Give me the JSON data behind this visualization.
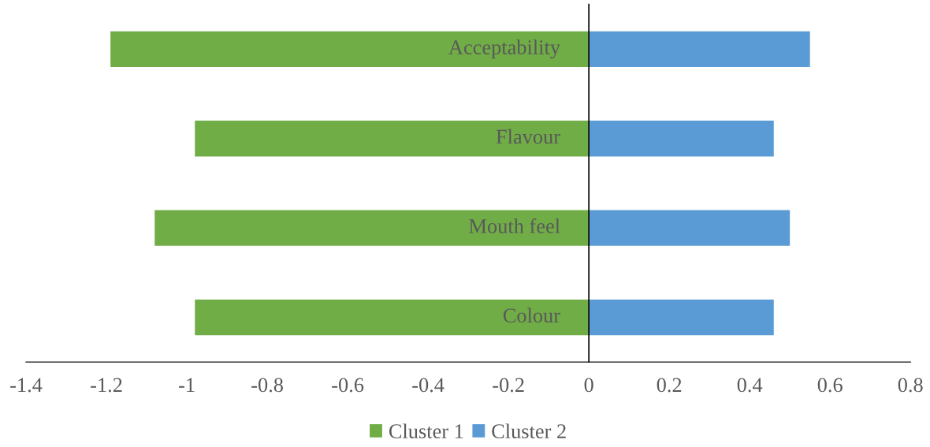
{
  "chart_data": {
    "type": "bar",
    "orientation": "horizontal",
    "categories": [
      "Acceptability",
      "Flavour",
      "Mouth feel",
      "Colour"
    ],
    "series": [
      {
        "name": "Cluster 1",
        "color": "#70ad47",
        "values": [
          -1.19,
          -0.98,
          -1.08,
          -0.98
        ]
      },
      {
        "name": "Cluster 2",
        "color": "#5b9bd5",
        "values": [
          0.55,
          0.46,
          0.5,
          0.46
        ]
      }
    ],
    "xlim": [
      -1.4,
      0.8
    ],
    "xticks": [
      -1.4,
      -1.2,
      -1,
      -0.8,
      -0.6,
      -0.4,
      -0.2,
      0,
      0.2,
      0.4,
      0.6,
      0.8
    ],
    "grid": false,
    "stacked": true,
    "legend": "bottom"
  }
}
